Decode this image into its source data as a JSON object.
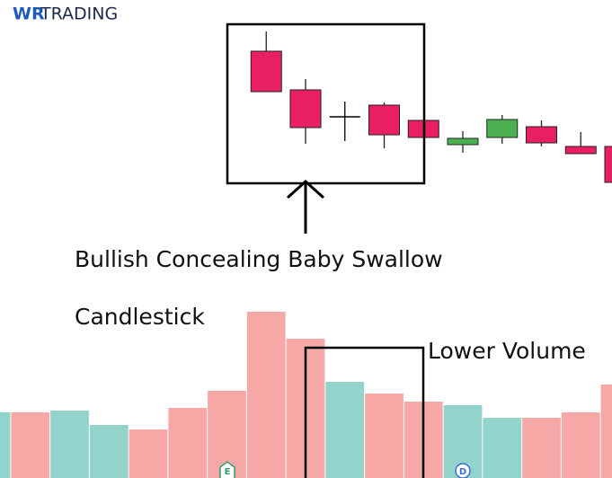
{
  "logo": {
    "mark": "WR",
    "text": "TRADING"
  },
  "chart_data": {
    "type": "candlestick",
    "annotations": [
      "Bullish Concealing Baby Swallow",
      "Candlestick",
      "Lower Volume"
    ],
    "markers": [
      "E",
      "D"
    ],
    "categories": [
      null,
      null,
      null,
      null,
      null,
      null,
      null,
      null,
      null,
      null,
      null,
      null,
      null,
      null,
      null,
      null,
      null
    ],
    "open": [
      null,
      null,
      null,
      null,
      null,
      null,
      null,
      153,
      110,
      80,
      93,
      76,
      49,
      57,
      69,
      47,
      47
    ],
    "high": [
      null,
      null,
      null,
      null,
      null,
      null,
      null,
      175,
      122,
      97,
      96,
      76,
      64,
      82,
      76,
      63,
      47
    ],
    "low": [
      null,
      null,
      null,
      null,
      null,
      null,
      null,
      108,
      50,
      53,
      45,
      57,
      40,
      50,
      47,
      39,
      7
    ],
    "close": [
      null,
      null,
      null,
      null,
      null,
      null,
      null,
      108,
      68,
      80,
      60,
      57,
      56,
      77,
      51,
      39,
      7
    ],
    "up_color": "#4caf50",
    "down_color": "#e91e63",
    "doji_color": "#000000",
    "ylim": [
      0,
      210
    ],
    "volume": {
      "values": [
        73,
        73,
        75,
        59,
        54,
        78,
        97,
        185,
        155,
        107,
        94,
        85,
        81,
        67,
        67,
        73,
        104
      ],
      "colors": [
        "#92d3cc",
        "#f5a8a5",
        "#92d3cc",
        "#92d3cc",
        "#f5a8a5",
        "#f5a8a5",
        "#f5a8a5",
        "#f5a8a5",
        "#f5a8a5",
        "#92d3cc",
        "#f5a8a5",
        "#f5a8a5",
        "#92d3cc",
        "#92d3cc",
        "#f5a8a5",
        "#f5a8a5",
        "#f5a8a5"
      ]
    },
    "y2lim": [
      0,
      185
    ]
  }
}
